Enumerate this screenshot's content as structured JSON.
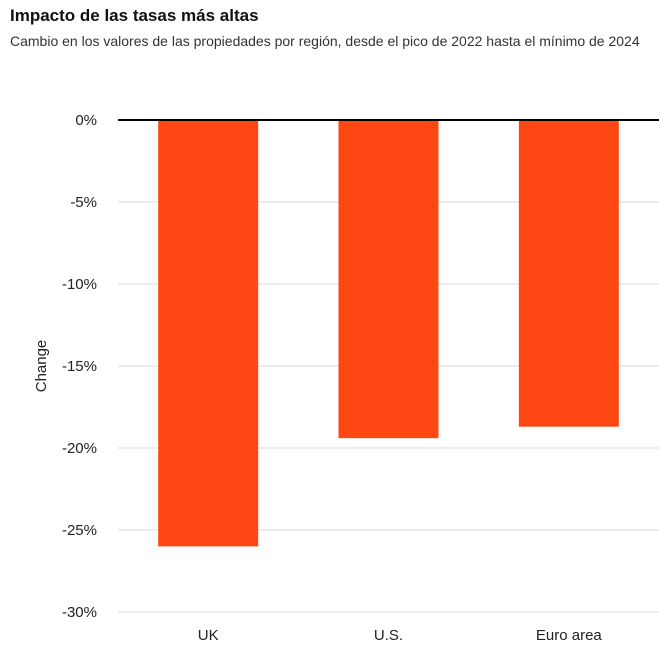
{
  "chart_data": {
    "type": "bar",
    "title": "Impacto de las tasas más altas",
    "subtitle": "Cambio en los valores de las propiedades por región, desde el pico de 2022 hasta el mínimo de 2024",
    "categories": [
      "UK",
      "U.S.",
      "Euro area"
    ],
    "values": [
      -26,
      -19.4,
      -18.7
    ],
    "xlabel": "",
    "ylabel": "Change",
    "ylim": [
      -30,
      0
    ],
    "yticks": [
      0,
      -5,
      -10,
      -15,
      -20,
      -25,
      -30
    ],
    "ytick_labels": [
      "0%",
      "-5%",
      "-10%",
      "-15%",
      "-20%",
      "-25%",
      "-30%"
    ],
    "grid": true,
    "colors": {
      "bar": "#ff4713",
      "grid": "#d9d9d9",
      "zero_line": "#000000"
    }
  }
}
